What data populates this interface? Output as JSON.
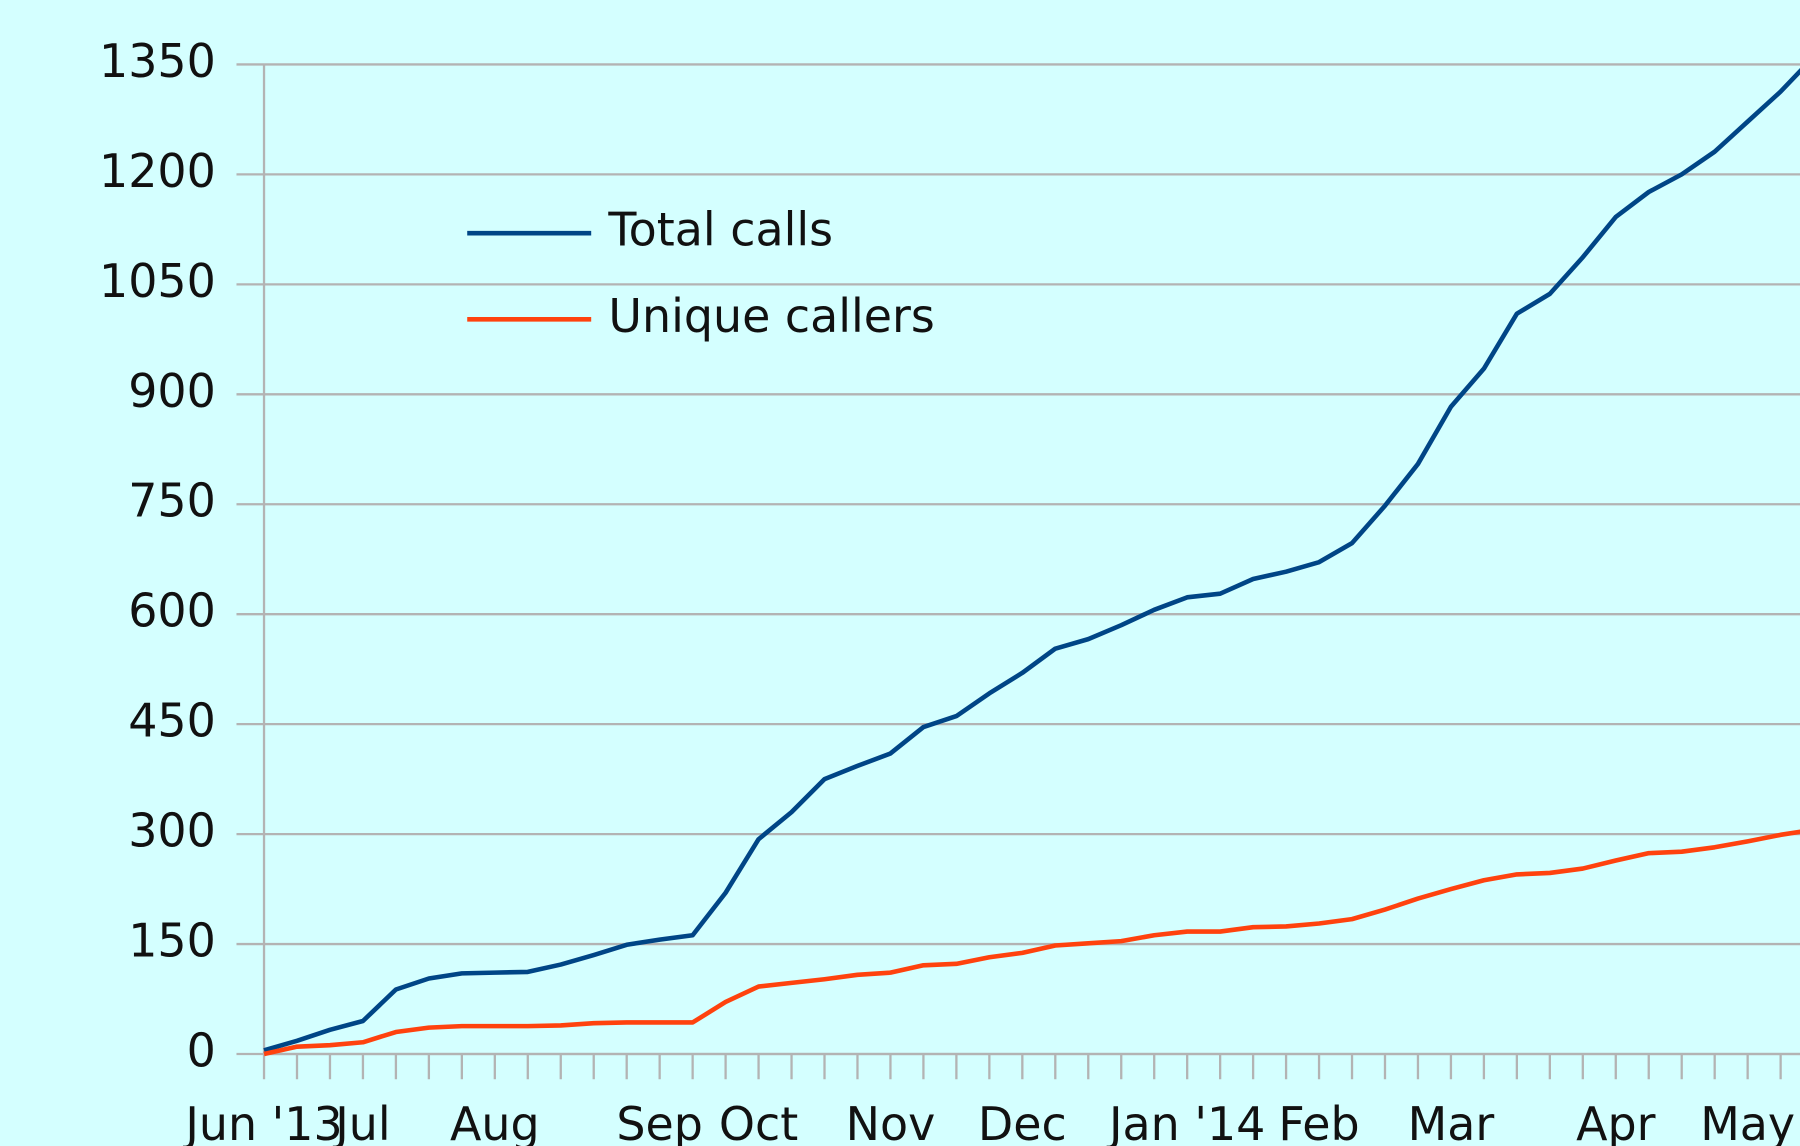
{
  "chart_data": {
    "type": "line",
    "categories": [
      "Jun '13",
      null,
      null,
      "Jul",
      null,
      null,
      null,
      "Aug",
      null,
      null,
      null,
      null,
      "Sep",
      null,
      null,
      "Oct",
      null,
      null,
      null,
      "Nov",
      null,
      null,
      null,
      "Dec",
      null,
      null,
      null,
      null,
      "Jan '14",
      null,
      null,
      null,
      "Feb",
      null,
      null,
      null,
      "Mar",
      null,
      null,
      null,
      null,
      "Apr",
      null,
      null,
      null,
      "May",
      null,
      null
    ],
    "series": [
      {
        "name": "Total calls",
        "color": "#004586",
        "values": [
          5,
          18,
          33,
          45,
          88,
          103,
          110,
          111,
          112,
          122,
          135,
          149,
          156,
          162,
          220,
          293,
          330,
          375,
          393,
          410,
          446,
          461,
          492,
          520,
          553,
          566,
          585,
          606,
          623,
          628,
          648,
          658,
          671,
          697,
          748,
          805,
          883,
          935,
          1010,
          1037,
          1087,
          1142,
          1176,
          1200,
          1231,
          1272,
          1313,
          1360
        ]
      },
      {
        "name": "Unique callers",
        "color": "#ff420e",
        "values": [
          0,
          10,
          12,
          16,
          30,
          36,
          38,
          38,
          38,
          39,
          42,
          43,
          43,
          43,
          71,
          92,
          97,
          102,
          108,
          111,
          121,
          123,
          132,
          138,
          148,
          151,
          154,
          162,
          167,
          167,
          173,
          174,
          178,
          184,
          197,
          212,
          225,
          237,
          245,
          247,
          253,
          264,
          274,
          276,
          282,
          290,
          299,
          306
        ]
      }
    ],
    "ylim": [
      0,
      1350
    ],
    "yticks": [
      0,
      150,
      300,
      450,
      600,
      750,
      900,
      1050,
      1200,
      1350
    ],
    "grid": true,
    "legend": "upper left"
  }
}
